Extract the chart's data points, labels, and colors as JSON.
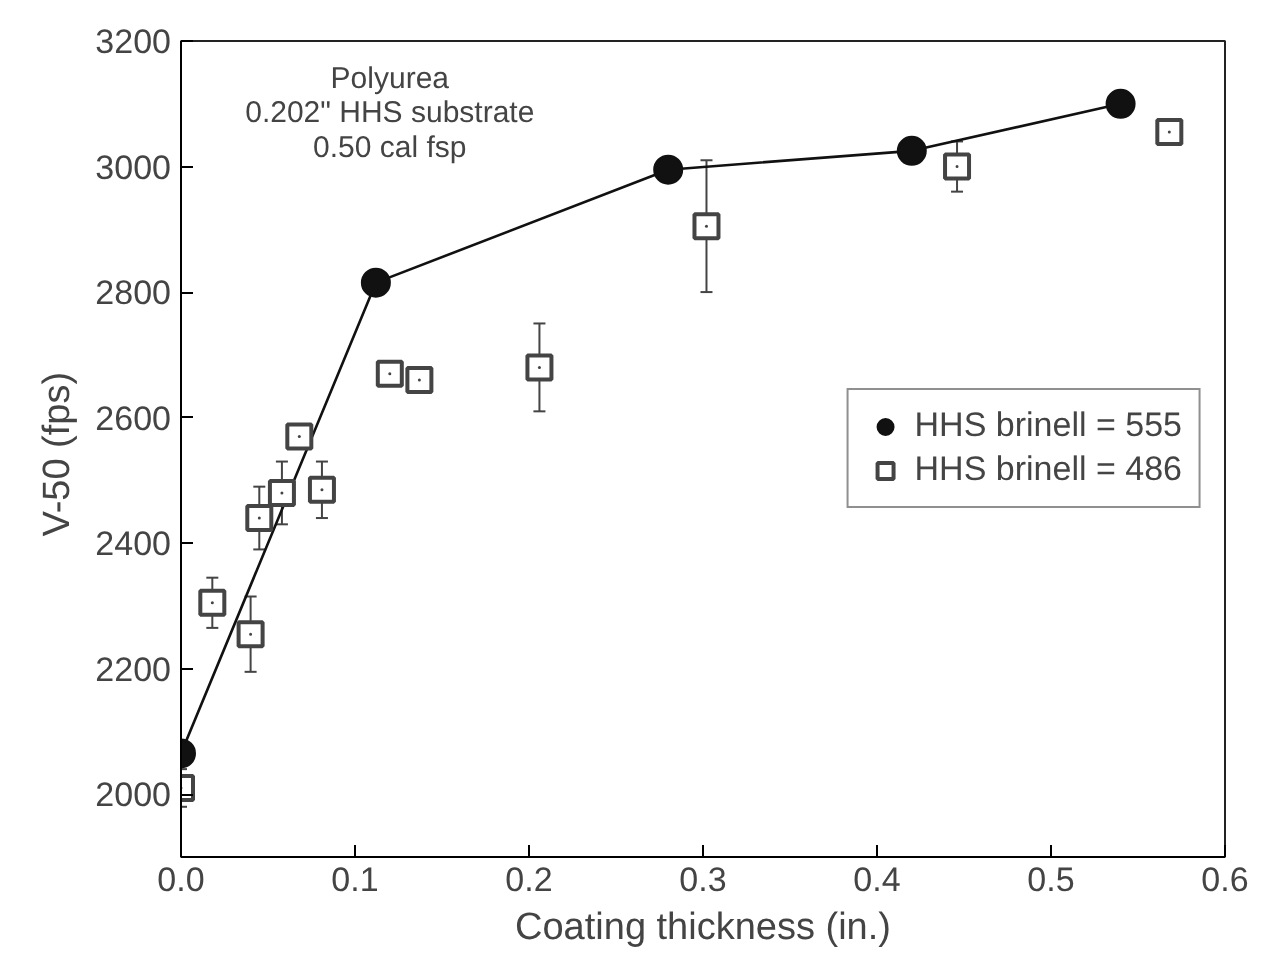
{
  "chart_data": {
    "type": "scatter",
    "xlabel": "Coating thickness (in.)",
    "ylabel": "V-50  (fps)",
    "annotations": [
      "Polyurea",
      "0.202\" HHS substrate",
      "0.50 cal fsp"
    ],
    "xlim": [
      0,
      0.6
    ],
    "ylim": [
      1900,
      3200
    ],
    "xticks": [
      {
        "value": 0,
        "label": "0.0"
      },
      {
        "value": 0.1,
        "label": "0.1"
      },
      {
        "value": 0.2,
        "label": "0.2"
      },
      {
        "value": 0.3,
        "label": "0.3"
      },
      {
        "value": 0.4,
        "label": "0.4"
      },
      {
        "value": 0.5,
        "label": "0.5"
      },
      {
        "value": 0.6,
        "label": "0.6"
      }
    ],
    "yticks": [
      2000,
      2200,
      2400,
      2600,
      2800,
      3000,
      3200
    ],
    "grid": false,
    "legend": "right",
    "series": [
      {
        "name": "HHS brinell = 555",
        "type": "line",
        "marker": "circle",
        "color": "#111111",
        "x": [
          0,
          0.112,
          0.28,
          0.42,
          0.54
        ],
        "values": [
          2065,
          2815,
          2995,
          3025,
          3100
        ]
      },
      {
        "name": "HHS brinell = 486",
        "marker": "square",
        "color": "#444444",
        "x": [
          0,
          0.018,
          0.04,
          0.045,
          0.058,
          0.068,
          0.081,
          0.12,
          0.137,
          0.206,
          0.302,
          0.446,
          0.568
        ],
        "values": [
          2010,
          2305,
          2255,
          2440,
          2480,
          2570,
          2485,
          2670,
          2660,
          2680,
          2905,
          3000,
          3055
        ],
        "errors": [
          30,
          40,
          60,
          50,
          50,
          null,
          45,
          null,
          null,
          70,
          105,
          40,
          null
        ]
      }
    ]
  }
}
